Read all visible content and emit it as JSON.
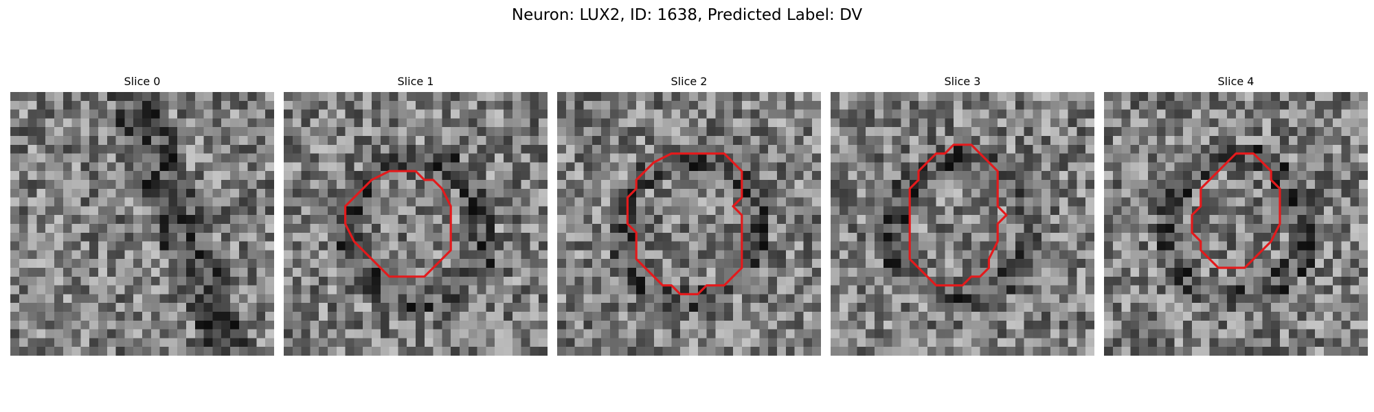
{
  "figure": {
    "title": "Neuron: LUX2, ID: 1638, Predicted Label: DV"
  },
  "colors": {
    "contour": "#e31a1c",
    "background": "#ffffff"
  },
  "slices": [
    {
      "title": "Slice 0",
      "has_contour": false,
      "seed": 11,
      "contour": []
    },
    {
      "title": "Slice 1",
      "has_contour": true,
      "seed": 23,
      "contour": [
        [
          12,
          9
        ],
        [
          15,
          9
        ],
        [
          16,
          10
        ],
        [
          17,
          10
        ],
        [
          18,
          11
        ],
        [
          19,
          13
        ],
        [
          19,
          18
        ],
        [
          18,
          19
        ],
        [
          17,
          20
        ],
        [
          16,
          21
        ],
        [
          12,
          21
        ],
        [
          11,
          20
        ],
        [
          8,
          17
        ],
        [
          7,
          15
        ],
        [
          7,
          13
        ],
        [
          8,
          12
        ],
        [
          10,
          10
        ]
      ]
    },
    {
      "title": "Slice 2",
      "has_contour": true,
      "seed": 37,
      "contour": [
        [
          13,
          7
        ],
        [
          19,
          7
        ],
        [
          20,
          8
        ],
        [
          21,
          9
        ],
        [
          21,
          12
        ],
        [
          20,
          13
        ],
        [
          21,
          14
        ],
        [
          21,
          20
        ],
        [
          20,
          21
        ],
        [
          19,
          22
        ],
        [
          17,
          22
        ],
        [
          16,
          23
        ],
        [
          14,
          23
        ],
        [
          13,
          22
        ],
        [
          12,
          22
        ],
        [
          11,
          21
        ],
        [
          10,
          20
        ],
        [
          9,
          19
        ],
        [
          9,
          16
        ],
        [
          8,
          15
        ],
        [
          8,
          12
        ],
        [
          9,
          11
        ],
        [
          9,
          10
        ],
        [
          10,
          9
        ],
        [
          11,
          8
        ]
      ]
    },
    {
      "title": "Slice 3",
      "has_contour": true,
      "seed": 51,
      "contour": [
        [
          15,
          6
        ],
        [
          16,
          6
        ],
        [
          17,
          7
        ],
        [
          18,
          8
        ],
        [
          19,
          9
        ],
        [
          19,
          13
        ],
        [
          20,
          14
        ],
        [
          19,
          15
        ],
        [
          19,
          17
        ],
        [
          18,
          19
        ],
        [
          18,
          20
        ],
        [
          17,
          21
        ],
        [
          16,
          21
        ],
        [
          15,
          22
        ],
        [
          12,
          22
        ],
        [
          11,
          21
        ],
        [
          10,
          20
        ],
        [
          9,
          19
        ],
        [
          9,
          11
        ],
        [
          10,
          10
        ],
        [
          10,
          9
        ],
        [
          11,
          8
        ],
        [
          12,
          7
        ],
        [
          13,
          7
        ],
        [
          14,
          6
        ]
      ]
    },
    {
      "title": "Slice 4",
      "has_contour": true,
      "seed": 67,
      "contour": [
        [
          15,
          7
        ],
        [
          17,
          7
        ],
        [
          18,
          8
        ],
        [
          19,
          9
        ],
        [
          19,
          10
        ],
        [
          20,
          11
        ],
        [
          20,
          15
        ],
        [
          19,
          17
        ],
        [
          18,
          18
        ],
        [
          17,
          19
        ],
        [
          16,
          20
        ],
        [
          13,
          20
        ],
        [
          12,
          19
        ],
        [
          11,
          18
        ],
        [
          11,
          17
        ],
        [
          10,
          16
        ],
        [
          10,
          14
        ],
        [
          11,
          13
        ],
        [
          11,
          11
        ],
        [
          12,
          10
        ],
        [
          13,
          9
        ],
        [
          14,
          8
        ]
      ]
    }
  ]
}
